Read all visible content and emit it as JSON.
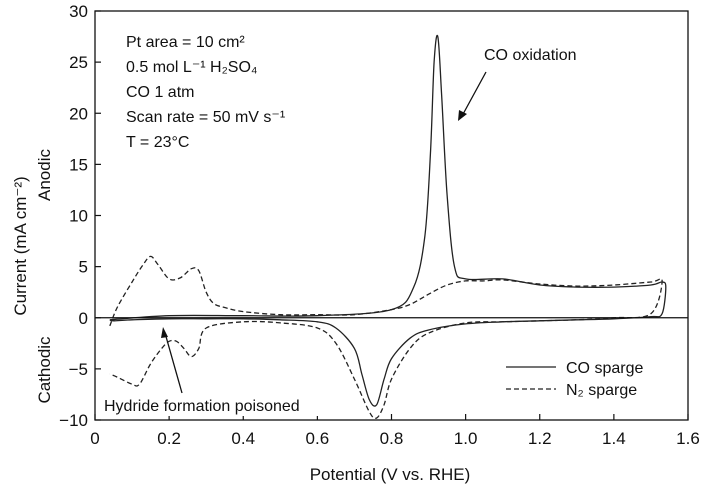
{
  "chart_data": {
    "type": "line",
    "title": "",
    "xlabel": "Potential (V vs. RHE)",
    "ylabel": "Current (mA cm⁻²)",
    "ylabel_side_top": "Anodic",
    "ylabel_side_bottom": "Cathodic",
    "xlim": [
      0,
      1.6
    ],
    "ylim": [
      -10,
      30
    ],
    "x_ticks": [
      0,
      0.2,
      0.4,
      0.6,
      0.8,
      1.0,
      1.2,
      1.4,
      1.6
    ],
    "x_tick_labels": [
      "0",
      "0.2",
      "0.4",
      "0.6",
      "0.8",
      "1.0",
      "1.2",
      "1.4",
      "1.6"
    ],
    "y_ticks": [
      -10,
      -5,
      0,
      5,
      10,
      15,
      20,
      25,
      30
    ],
    "y_tick_labels": [
      "−10",
      "−5",
      "0",
      "5",
      "10",
      "15",
      "20",
      "25",
      "30"
    ],
    "grid": false,
    "legend_position": "bottom-right",
    "conditions": [
      "Pt area = 10 cm²",
      "0.5 mol L⁻¹ H₂SO₄",
      "CO 1 atm",
      "Scan rate = 50 mV s⁻¹",
      "T = 23°C"
    ],
    "annotations": [
      {
        "text": "CO oxidation",
        "x": 0.92,
        "y": 27.5
      },
      {
        "text": "Hydride formation poisoned",
        "x": 0.18,
        "y": 0.0
      }
    ],
    "series": [
      {
        "name": "CO sparge",
        "style": "solid",
        "color": "#222222",
        "x": [
          0.04,
          0.2,
          0.4,
          0.6,
          0.8,
          0.86,
          0.89,
          0.905,
          0.915,
          0.925,
          0.935,
          0.95,
          0.97,
          1.0,
          1.1,
          1.2,
          1.3,
          1.4,
          1.5,
          1.53,
          1.54,
          1.53,
          1.5,
          1.4,
          1.3,
          1.2,
          1.1,
          1.0,
          0.9,
          0.85,
          0.8,
          0.78,
          0.76,
          0.74,
          0.72,
          0.7,
          0.65,
          0.6,
          0.5,
          0.4,
          0.3,
          0.2,
          0.1,
          0.05,
          0.04
        ],
        "y": [
          -0.2,
          0.2,
          0.2,
          0.2,
          0.8,
          3.0,
          8.0,
          16.0,
          25.0,
          27.5,
          22.0,
          12.0,
          5.0,
          3.8,
          3.8,
          3.2,
          3.0,
          3.0,
          3.2,
          3.5,
          3.0,
          0.4,
          0.1,
          -0.1,
          -0.2,
          -0.3,
          -0.4,
          -0.6,
          -1.2,
          -2.0,
          -4.0,
          -6.0,
          -8.5,
          -8.0,
          -5.5,
          -3.0,
          -1.0,
          -0.4,
          -0.2,
          -0.1,
          -0.1,
          -0.1,
          -0.2,
          -0.3,
          -0.2
        ]
      },
      {
        "name": "N₂ sparge",
        "style": "dashed",
        "color": "#222222",
        "x": [
          0.04,
          0.06,
          0.1,
          0.13,
          0.15,
          0.17,
          0.2,
          0.23,
          0.26,
          0.28,
          0.3,
          0.32,
          0.35,
          0.4,
          0.5,
          0.6,
          0.7,
          0.8,
          0.85,
          0.9,
          0.95,
          1.0,
          1.05,
          1.1,
          1.2,
          1.3,
          1.4,
          1.5,
          1.53,
          1.5,
          1.4,
          1.3,
          1.2,
          1.1,
          1.0,
          0.9,
          0.85,
          0.8,
          0.78,
          0.76,
          0.74,
          0.7,
          0.65,
          0.6,
          0.5,
          0.4,
          0.3,
          0.28,
          0.26,
          0.24,
          0.22,
          0.2,
          0.18,
          0.15,
          0.12,
          0.1,
          0.06,
          0.04
        ],
        "y": [
          -0.8,
          1.0,
          3.5,
          5.2,
          6.0,
          5.2,
          3.8,
          3.9,
          4.8,
          4.6,
          2.5,
          1.4,
          1.0,
          0.6,
          0.3,
          0.3,
          0.3,
          0.8,
          1.3,
          2.3,
          3.2,
          3.6,
          3.6,
          3.7,
          3.3,
          3.1,
          3.2,
          3.5,
          3.6,
          0.4,
          0.0,
          -0.2,
          -0.3,
          -0.4,
          -0.5,
          -1.5,
          -3.0,
          -6.0,
          -8.5,
          -9.8,
          -9.2,
          -6.0,
          -2.5,
          -1.0,
          -0.5,
          -0.4,
          -1.0,
          -3.0,
          -3.8,
          -3.0,
          -2.3,
          -2.3,
          -3.0,
          -4.5,
          -6.5,
          -6.5,
          -5.8,
          -5.5
        ]
      }
    ]
  }
}
